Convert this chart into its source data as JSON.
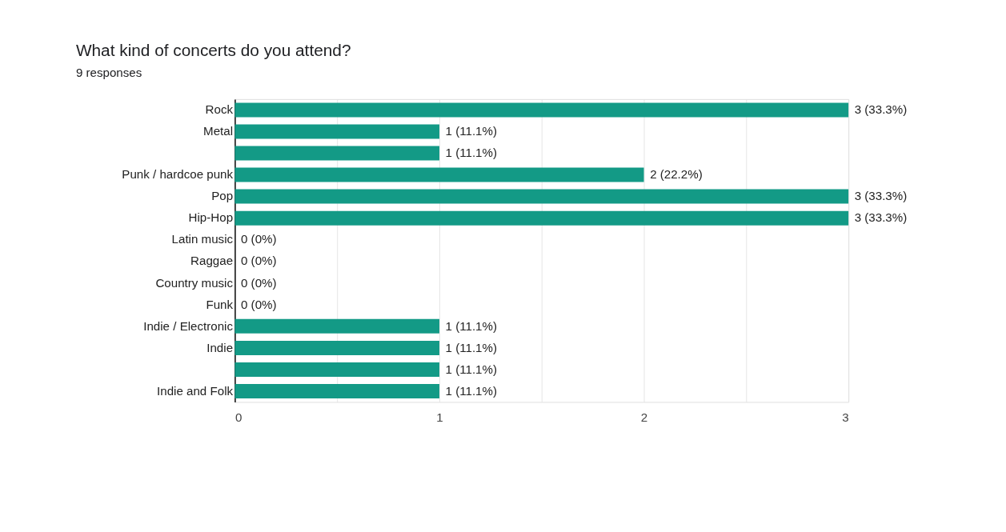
{
  "chart_data": {
    "type": "bar",
    "orientation": "horizontal",
    "title": "What kind of concerts do you attend?",
    "subtitle": "9 responses",
    "categories": [
      "Rock",
      "Metal",
      null,
      "Punk / hardcoe punk",
      "Pop",
      "Hip-Hop",
      "Latin music",
      "Raggae",
      "Country music",
      "Funk",
      "Indie / Electronic",
      "Indie",
      null,
      "Indie and Folk"
    ],
    "values": [
      3,
      1,
      1,
      2,
      3,
      3,
      0,
      0,
      0,
      0,
      1,
      1,
      1,
      1
    ],
    "value_labels": [
      "3 (33.3%)",
      "1 (11.1%)",
      "1 (11.1%)",
      "2 (22.2%)",
      "3 (33.3%)",
      "3 (33.3%)",
      "0 (0%)",
      "0 (0%)",
      "0 (0%)",
      "0 (0%)",
      "1 (11.1%)",
      "1 (11.1%)",
      "1 (11.1%)",
      "1 (11.1%)"
    ],
    "color": "#139a86",
    "xlim": [
      0,
      3
    ],
    "xticks": [
      0,
      {
        "value": 0.5,
        "label": null
      },
      1,
      {
        "value": 1.5,
        "label": null
      },
      2,
      {
        "value": 2.5,
        "label": null
      },
      3
    ],
    "grid": "x"
  }
}
